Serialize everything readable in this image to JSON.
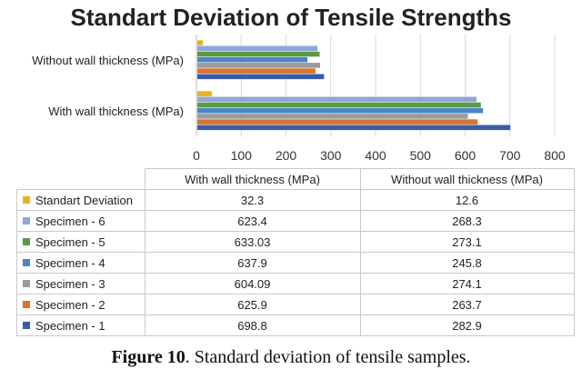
{
  "chart_data": {
    "type": "bar",
    "orientation": "horizontal",
    "title": "Standart Deviation of Tensile Strengths",
    "categories": [
      "With wall thickness (MPa)",
      "Without wall thickness (MPa)"
    ],
    "xlim": [
      0,
      800
    ],
    "xticks": [
      "0",
      "100",
      "200",
      "300",
      "400",
      "500",
      "600",
      "700",
      "800"
    ],
    "grid": "vertical",
    "legend": "table-below",
    "series": [
      {
        "name": "Specimen - 1",
        "color": "#3B5BA7",
        "values": [
          698.8,
          282.9
        ],
        "labels": [
          "698.8",
          "282.9"
        ]
      },
      {
        "name": "Specimen - 2",
        "color": "#D9742F",
        "values": [
          625.9,
          263.7
        ],
        "labels": [
          "625.9",
          "263.7"
        ]
      },
      {
        "name": "Specimen - 3",
        "color": "#9B9B9B",
        "values": [
          604.09,
          274.1
        ],
        "labels": [
          "604.09",
          "274.1"
        ]
      },
      {
        "name": "Specimen - 4",
        "color": "#4A86C4",
        "values": [
          637.9,
          245.8
        ],
        "labels": [
          "637.9",
          "245.8"
        ]
      },
      {
        "name": "Specimen - 5",
        "color": "#5B9A45",
        "values": [
          633.03,
          273.1
        ],
        "labels": [
          "633.03",
          "273.1"
        ]
      },
      {
        "name": "Specimen - 6",
        "color": "#8FA7D8",
        "values": [
          623.4,
          268.3
        ],
        "labels": [
          "623.4",
          "268.3"
        ]
      },
      {
        "name": "Standart Deviation",
        "color": "#E8B21E",
        "values": [
          32.3,
          12.6
        ],
        "labels": [
          "32.3",
          "12.6"
        ]
      }
    ]
  },
  "caption": {
    "figure_label": "Figure 10",
    "text": ". Standard deviation of tensile samples."
  }
}
